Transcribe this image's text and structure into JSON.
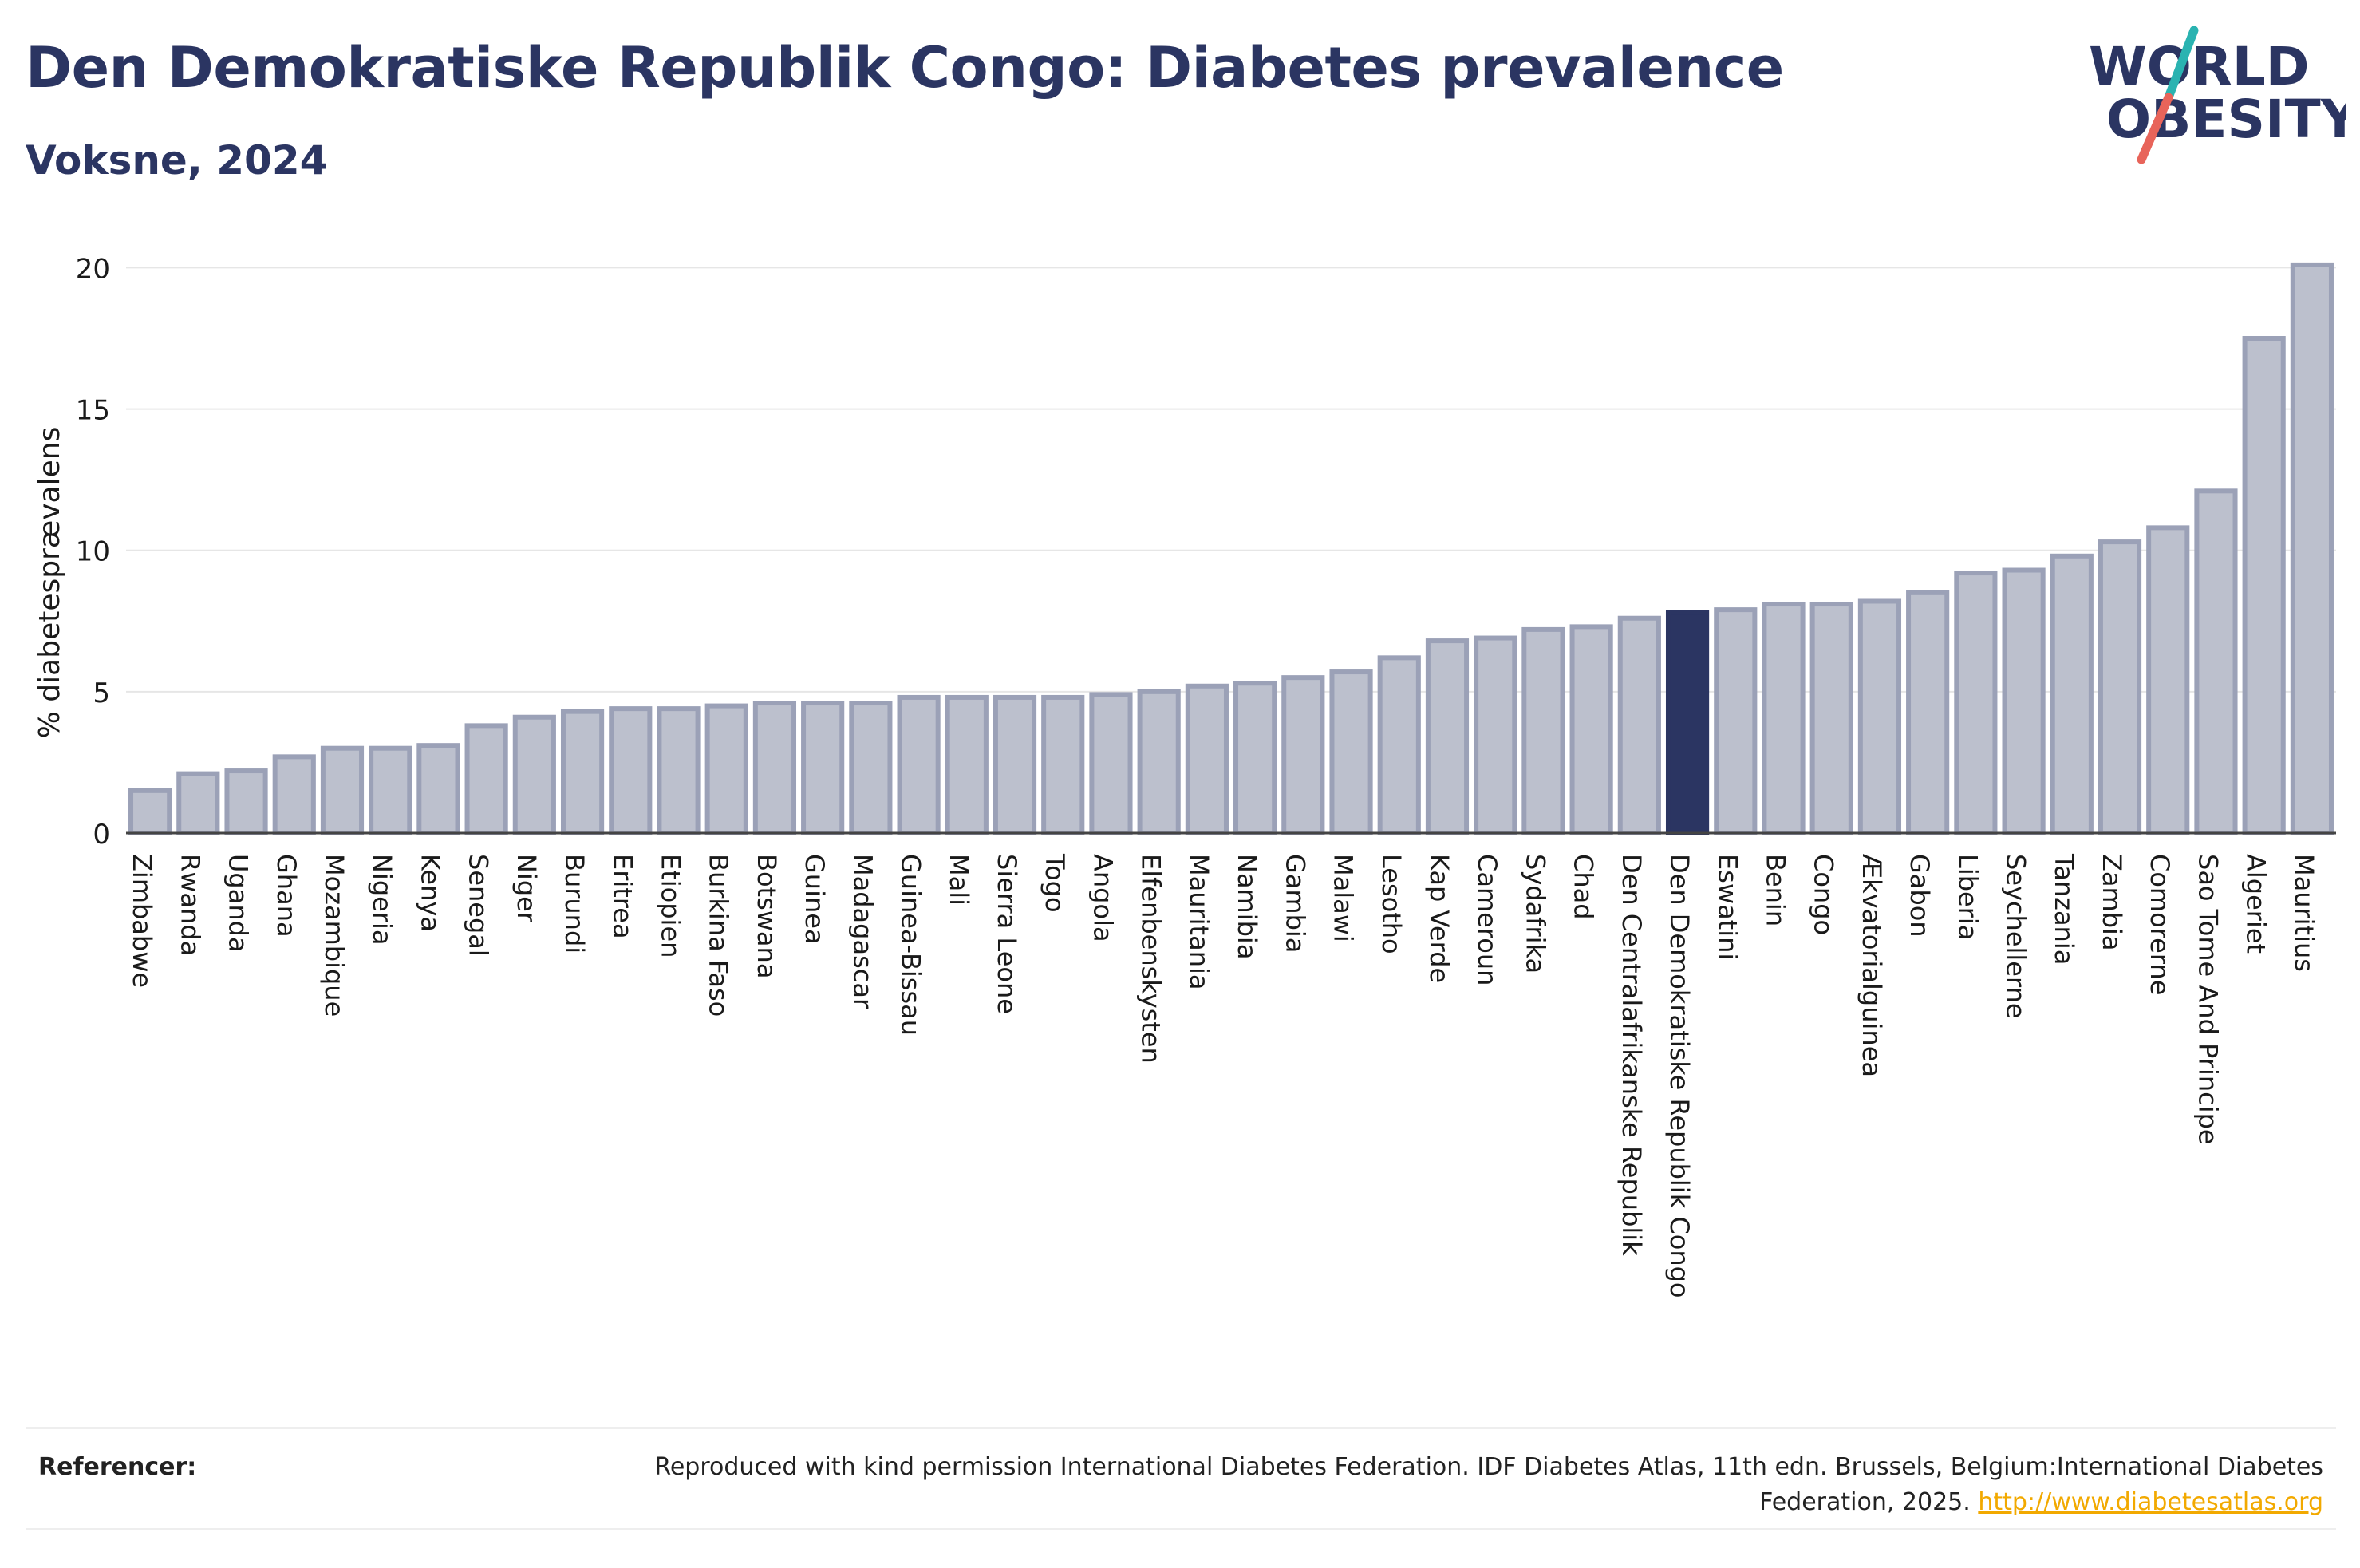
{
  "header": {
    "title": "Den Demokratiske Republik Congo: Diabetes prevalence",
    "subtitle": "Voksne, 2024"
  },
  "logo": {
    "line1": "WORLD",
    "line2": "OBESITY"
  },
  "chart_data": {
    "type": "bar",
    "ylabel": "% diabetesprævalens",
    "ylim": [
      0,
      21
    ],
    "yticks": [
      0,
      5,
      10,
      15,
      20
    ],
    "grid": true,
    "highlight": "Den Demokratiske Republik Congo",
    "colors": {
      "bar": "#bcc0cd",
      "bar_edge": "#9ba1b7",
      "highlight": "#2b3562",
      "grid": "#e6e6e6"
    },
    "categories": [
      "Zimbabwe",
      "Rwanda",
      "Uganda",
      "Ghana",
      "Mozambique",
      "Nigeria",
      "Kenya",
      "Senegal",
      "Niger",
      "Burundi",
      "Eritrea",
      "Etiopien",
      "Burkina Faso",
      "Botswana",
      "Guinea",
      "Madagascar",
      "Guinea-Bissau",
      "Mali",
      "Sierra Leone",
      "Togo",
      "Angola",
      "Elfenbenskysten",
      "Mauritania",
      "Namibia",
      "Gambia",
      "Malawi",
      "Lesotho",
      "Kap Verde",
      "Cameroun",
      "Sydafrika",
      "Chad",
      "Den Centralafrikanske Republik",
      "Den Demokratiske Republik Congo",
      "Eswatini",
      "Benin",
      "Congo",
      "Ækvatorialguinea",
      "Gabon",
      "Liberia",
      "Seychellerne",
      "Tanzania",
      "Zambia",
      "Comorerne",
      "Sao Tome And Principe",
      "Algeriet",
      "Mauritius"
    ],
    "values": [
      1.5,
      2.1,
      2.2,
      2.7,
      3.0,
      3.0,
      3.1,
      3.8,
      4.1,
      4.3,
      4.4,
      4.4,
      4.5,
      4.6,
      4.6,
      4.6,
      4.8,
      4.8,
      4.8,
      4.8,
      4.9,
      5.0,
      5.2,
      5.3,
      5.5,
      5.7,
      6.2,
      6.8,
      6.9,
      7.2,
      7.3,
      7.6,
      7.8,
      7.9,
      8.1,
      8.1,
      8.2,
      8.5,
      9.2,
      9.3,
      9.8,
      10.3,
      10.8,
      12.1,
      17.5,
      20.1
    ]
  },
  "footer": {
    "ref_label": "Referencer:",
    "ref_text": "Reproduced with kind permission International Diabetes Federation. IDF Diabetes Atlas, 11th edn. Brussels, Belgium:International Diabetes Federation, 2025.",
    "ref_link": "http://www.diabetesatlas.org"
  }
}
